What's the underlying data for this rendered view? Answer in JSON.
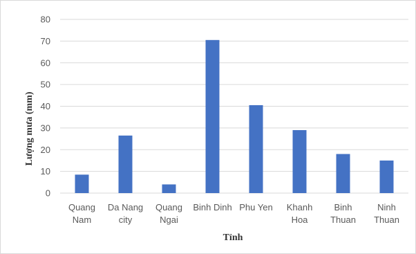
{
  "chart_data": {
    "type": "bar",
    "categories": [
      [
        "Quang",
        "Nam"
      ],
      [
        "Da Nang",
        "city"
      ],
      [
        "Quang",
        "Ngai"
      ],
      [
        "Binh Dinh"
      ],
      [
        "Phu Yen"
      ],
      [
        "Khanh",
        "Hoa"
      ],
      [
        "Binh",
        "Thuan"
      ],
      [
        "Ninh",
        "Thuan"
      ]
    ],
    "values": [
      8.5,
      26.5,
      4,
      70.5,
      40.5,
      29,
      18,
      15
    ],
    "xlabel": "Tỉnh",
    "ylabel": "Lượng mưa (mm)",
    "ylim": [
      0,
      80
    ],
    "yticks": [
      0,
      10,
      20,
      30,
      40,
      50,
      60,
      70,
      80
    ],
    "grid": true,
    "bar_color": "#4472c4",
    "grid_color": "#d9d9d9"
  }
}
